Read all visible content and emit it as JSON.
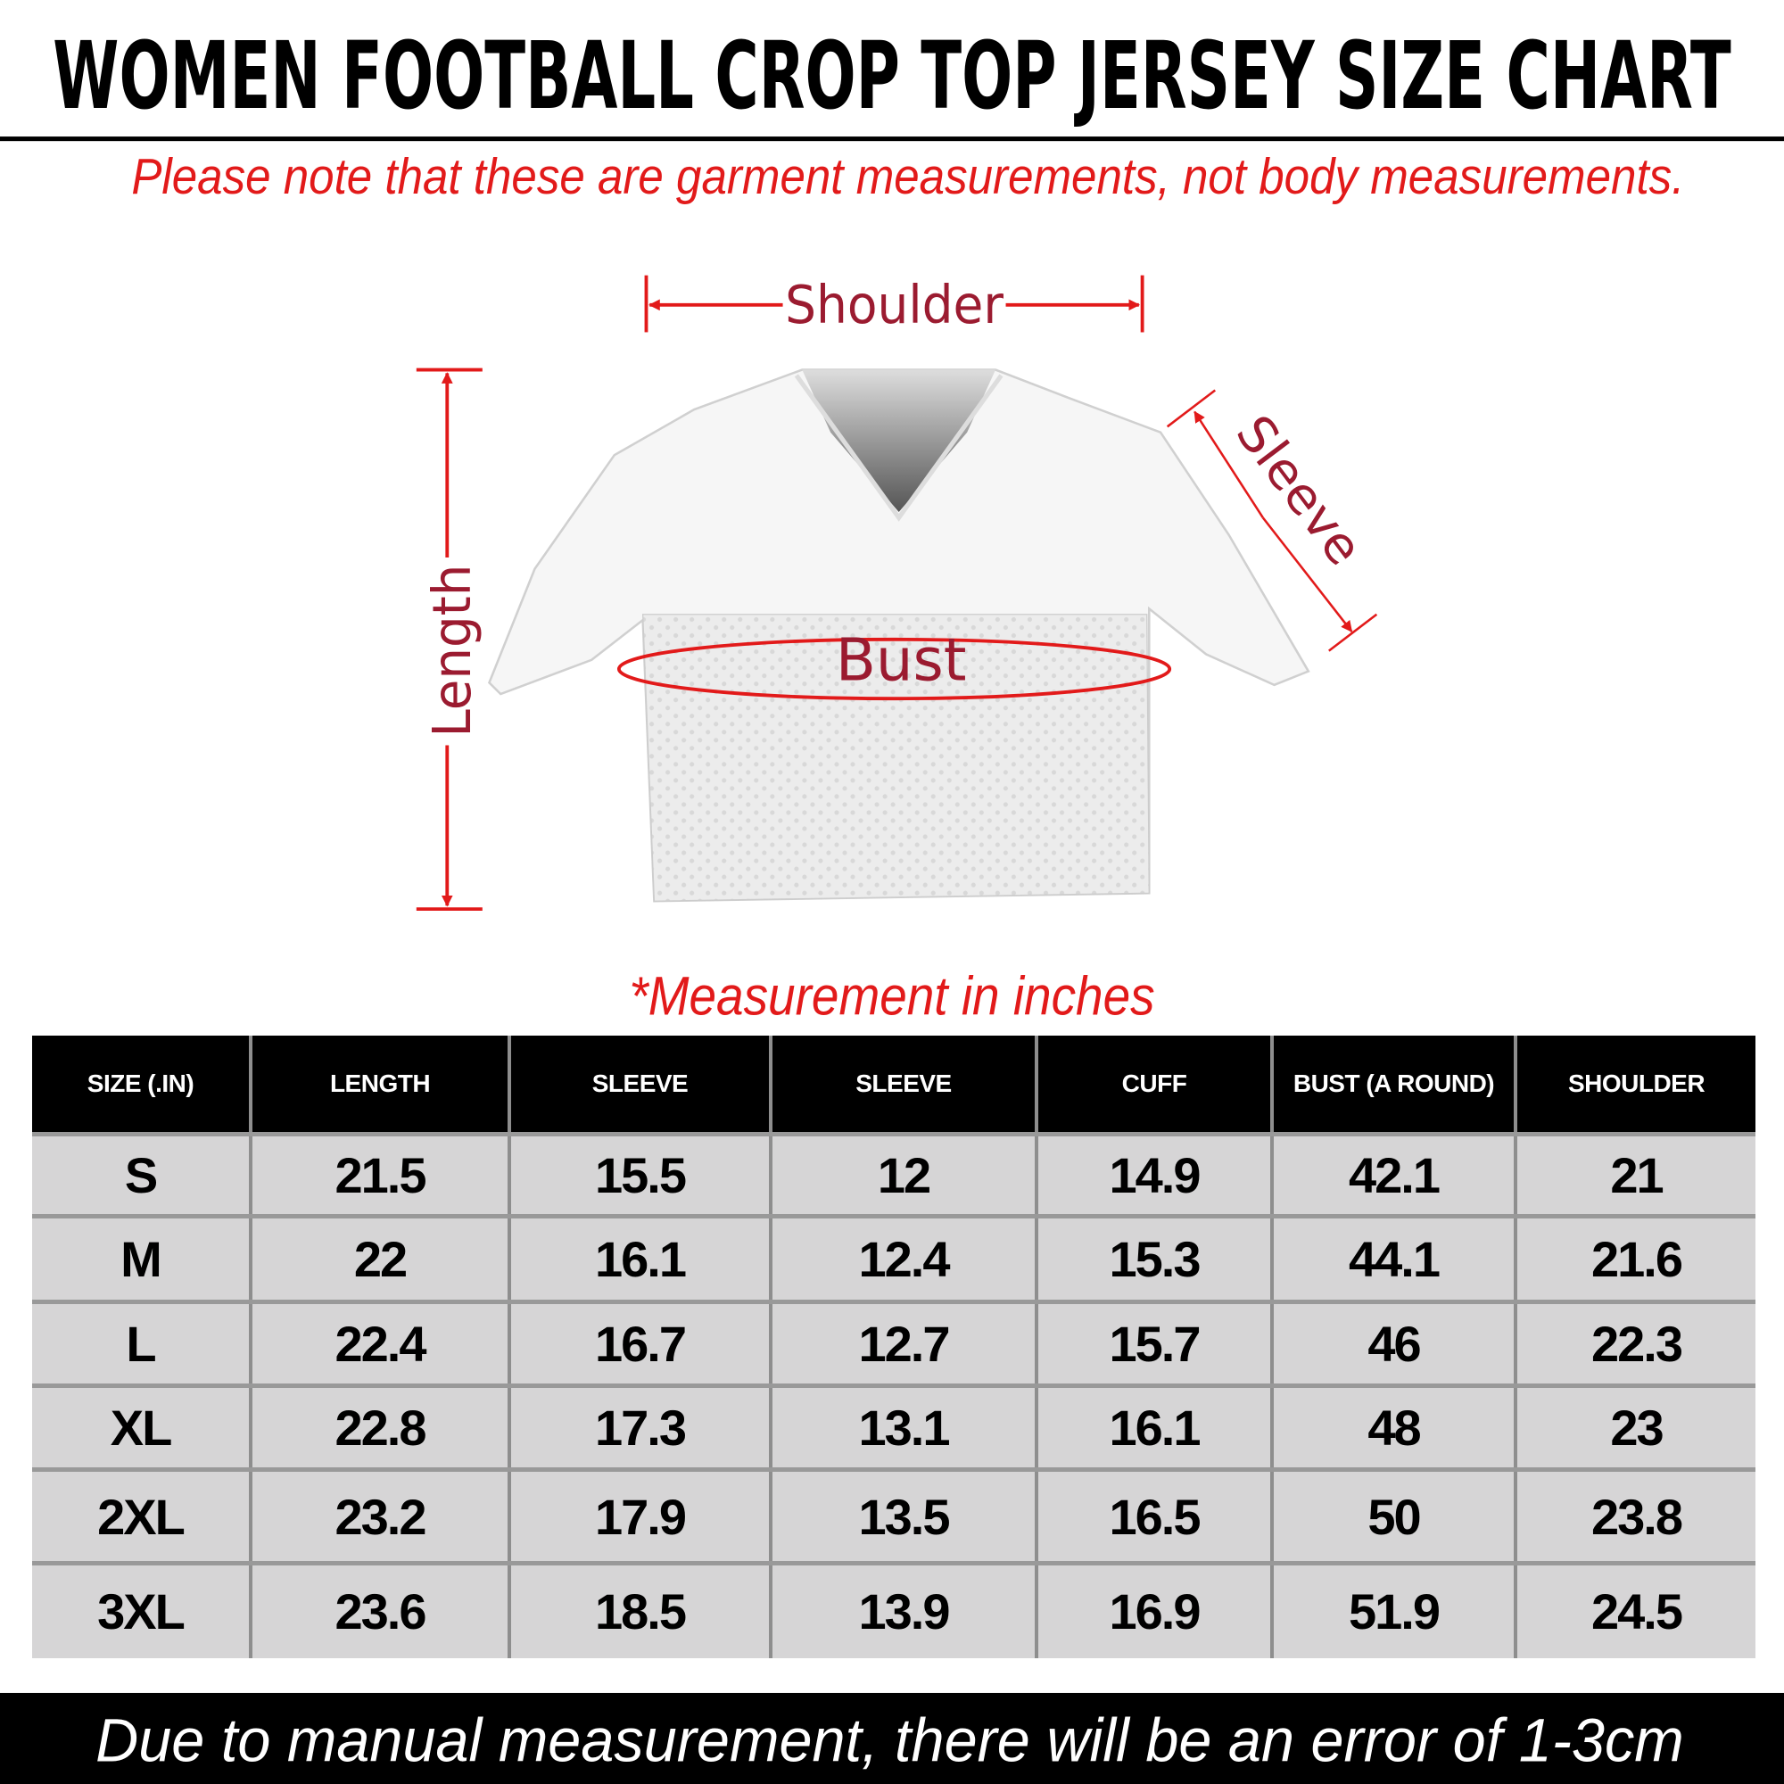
{
  "title": "WOMEN FOOTBALL CROP TOP JERSEY SIZE CHART",
  "note": "Please note that these are garment measurements, not body measurements.",
  "diagram": {
    "labels": {
      "shoulder": "Shoulder",
      "sleeve": "Sleeve",
      "length": "Length",
      "bust": "Bust"
    },
    "colors": {
      "arrow": "#e21a1a",
      "label": "#9b1b30"
    }
  },
  "unit_note": "*Measurement in inches",
  "table": {
    "headers": [
      "SIZE (.IN)",
      "LENGTH",
      "SLEEVE",
      "SLEEVE",
      "CUFF",
      "BUST (A ROUND)",
      "SHOULDER"
    ],
    "rows": [
      [
        "S",
        "21.5",
        "15.5",
        "12",
        "14.9",
        "42.1",
        "21"
      ],
      [
        "M",
        "22",
        "16.1",
        "12.4",
        "15.3",
        "44.1",
        "21.6"
      ],
      [
        "L",
        "22.4",
        "16.7",
        "12.7",
        "15.7",
        "46",
        "22.3"
      ],
      [
        "XL",
        "22.8",
        "17.3",
        "13.1",
        "16.1",
        "48",
        "23"
      ],
      [
        "2XL",
        "23.2",
        "17.9",
        "13.5",
        "16.5",
        "50",
        "23.8"
      ],
      [
        "3XL",
        "23.6",
        "18.5",
        "13.9",
        "16.9",
        "51.9",
        "24.5"
      ]
    ]
  },
  "footer": "Due to manual measurement, there will be an error of 1-3cm"
}
